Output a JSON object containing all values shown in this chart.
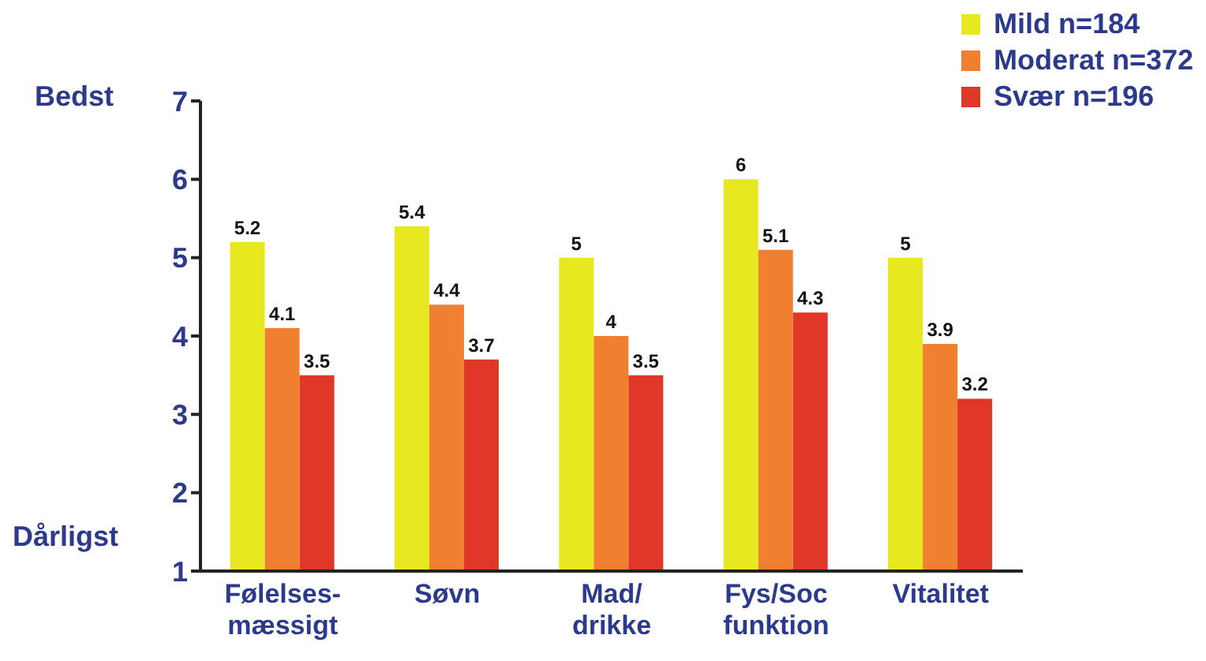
{
  "chart_data": {
    "type": "bar",
    "categories": [
      "Følelses-\nmæssigt",
      "Søvn",
      "Mad/\ndrikke",
      "Fys/Soc\nfunktion",
      "Vitalitet"
    ],
    "series": [
      {
        "name": "Mild n=184",
        "color": "#e8e820",
        "values": [
          5.2,
          5.4,
          5,
          6,
          5
        ]
      },
      {
        "name": "Moderat n=372",
        "color": "#f08030",
        "values": [
          4.1,
          4.4,
          4,
          5.1,
          3.9
        ]
      },
      {
        "name": "Svær n=196",
        "color": "#e03828",
        "values": [
          3.5,
          3.7,
          3.5,
          4.3,
          3.2
        ]
      }
    ],
    "ylim": [
      1,
      7
    ],
    "yticks": [
      1,
      2,
      3,
      4,
      5,
      6,
      7
    ],
    "legend": "top right",
    "data_labels": true,
    "annotations": [
      "Bedst",
      "Dårligst"
    ]
  }
}
